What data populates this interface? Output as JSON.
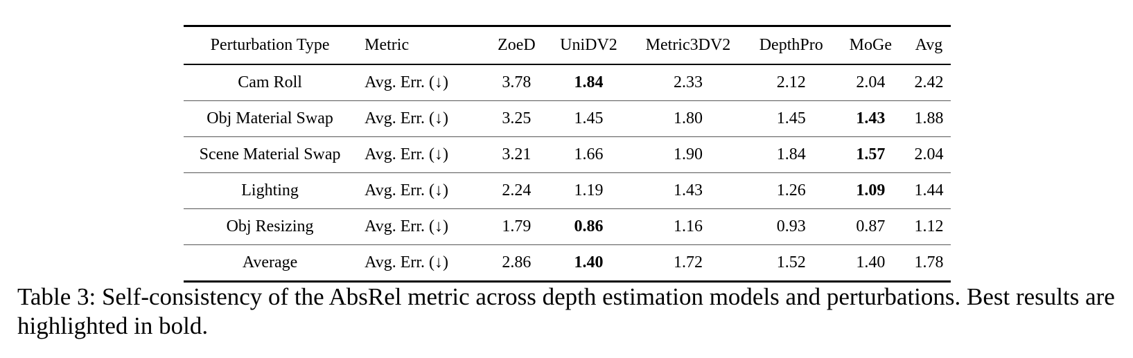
{
  "table": {
    "headers": [
      "Perturbation Type",
      "Metric",
      "ZoeD",
      "UniDV2",
      "Metric3DV2",
      "DepthPro",
      "MoGe",
      "Avg"
    ],
    "rows": [
      {
        "type": "Cam Roll",
        "metric": "Avg. Err. (↓)",
        "values": [
          "3.78",
          "1.84",
          "2.33",
          "2.12",
          "2.04",
          "2.42"
        ],
        "bold_index": 1
      },
      {
        "type": "Obj Material Swap",
        "metric": "Avg. Err. (↓)",
        "values": [
          "3.25",
          "1.45",
          "1.80",
          "1.45",
          "1.43",
          "1.88"
        ],
        "bold_index": 4
      },
      {
        "type": "Scene Material Swap",
        "metric": "Avg. Err. (↓)",
        "values": [
          "3.21",
          "1.66",
          "1.90",
          "1.84",
          "1.57",
          "2.04"
        ],
        "bold_index": 4
      },
      {
        "type": "Lighting",
        "metric": "Avg. Err. (↓)",
        "values": [
          "2.24",
          "1.19",
          "1.43",
          "1.26",
          "1.09",
          "1.44"
        ],
        "bold_index": 4
      },
      {
        "type": "Obj Resizing",
        "metric": "Avg. Err. (↓)",
        "values": [
          "1.79",
          "0.86",
          "1.16",
          "0.93",
          "0.87",
          "1.12"
        ],
        "bold_index": 1
      },
      {
        "type": "Average",
        "metric": "Avg. Err. (↓)",
        "values": [
          "2.86",
          "1.40",
          "1.72",
          "1.52",
          "1.40",
          "1.78"
        ],
        "bold_index": 1
      }
    ]
  },
  "caption": "Table 3: Self-consistency of the AbsRel metric across depth estimation models and perturbations. Best results are highlighted in bold."
}
